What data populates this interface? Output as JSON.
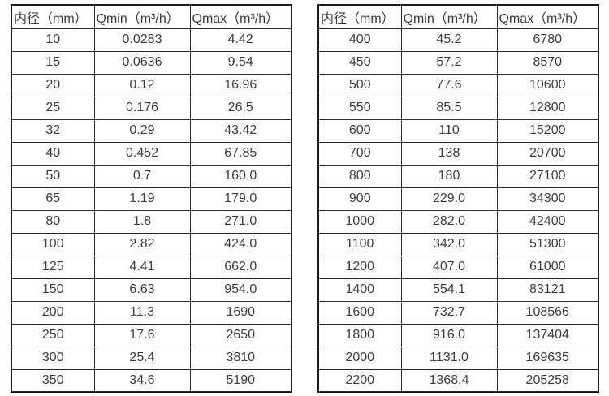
{
  "colors": {
    "background": "#ffffff",
    "border": "#1c1c1c",
    "text": "#3d3d3d"
  },
  "tables": [
    {
      "id": "flow-rate-table-small-diameters",
      "headers": [
        "内径（mm）",
        "Qmin（m³/h）",
        "Qmax（m³/h）"
      ],
      "rows": [
        [
          "10",
          "0.0283",
          "4.42"
        ],
        [
          "15",
          "0.0636",
          "9.54"
        ],
        [
          "20",
          "0.12",
          "16.96"
        ],
        [
          "25",
          "0.176",
          "26.5"
        ],
        [
          "32",
          "0.29",
          "43.42"
        ],
        [
          "40",
          "0.452",
          "67.85"
        ],
        [
          "50",
          "0.7",
          "160.0"
        ],
        [
          "65",
          "1.19",
          "179.0"
        ],
        [
          "80",
          "1.8",
          "271.0"
        ],
        [
          "100",
          "2.82",
          "424.0"
        ],
        [
          "125",
          "4.41",
          "662.0"
        ],
        [
          "150",
          "6.63",
          "954.0"
        ],
        [
          "200",
          "11.3",
          "1690"
        ],
        [
          "250",
          "17.6",
          "2650"
        ],
        [
          "300",
          "25.4",
          "3810"
        ],
        [
          "350",
          "34.6",
          "5190"
        ]
      ]
    },
    {
      "id": "flow-rate-table-large-diameters",
      "headers": [
        "内径（mm）",
        "Qmin（m³/h）",
        "Qmax（m³/h）"
      ],
      "rows": [
        [
          "400",
          "45.2",
          "6780"
        ],
        [
          "450",
          "57.2",
          "8570"
        ],
        [
          "500",
          "77.6",
          "10600"
        ],
        [
          "550",
          "85.5",
          "12800"
        ],
        [
          "600",
          "110",
          "15200"
        ],
        [
          "700",
          "138",
          "20700"
        ],
        [
          "800",
          "180",
          "27100"
        ],
        [
          "900",
          "229.0",
          "34300"
        ],
        [
          "1000",
          "282.0",
          "42400"
        ],
        [
          "1100",
          "342.0",
          "51300"
        ],
        [
          "1200",
          "407.0",
          "61000"
        ],
        [
          "1400",
          "554.1",
          "83121"
        ],
        [
          "1600",
          "732.7",
          "108566"
        ],
        [
          "1800",
          "916.0",
          "137404"
        ],
        [
          "2000",
          "1131.0",
          "169635"
        ],
        [
          "2200",
          "1368.4",
          "205258"
        ]
      ]
    }
  ]
}
